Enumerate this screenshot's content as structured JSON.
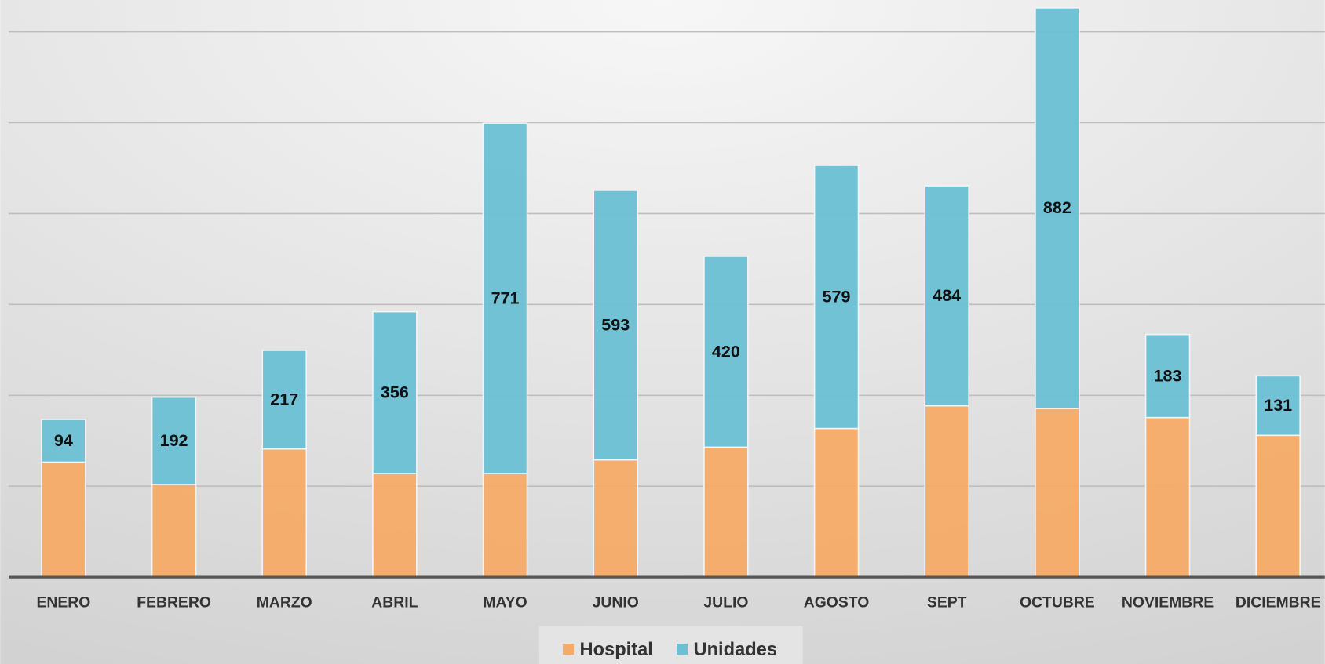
{
  "chart_data": {
    "type": "stacked_bar",
    "categories": [
      "ENERO",
      "FEBRERO",
      "MARZO",
      "ABRIL",
      "MAYO",
      "JUNIO",
      "JULIO",
      "AGOSTO",
      "SEPT",
      "OCTUBRE",
      "NOVIEMBRE",
      "DICIEMBRE"
    ],
    "series": [
      {
        "name": "Hospital",
        "color": "#f5ab67",
        "values": [
          253,
          204,
          282,
          228,
          228,
          258,
          286,
          327,
          377,
          371,
          351,
          312
        ]
      },
      {
        "name": "Unidades",
        "color": "#6cc0d5",
        "values": [
          94,
          192,
          217,
          356,
          771,
          593,
          420,
          579,
          484,
          882,
          183,
          131
        ],
        "show_labels": true
      }
    ],
    "ylim": [
      0,
      1270
    ],
    "yticks": [
      0,
      200,
      400,
      600,
      800,
      1000,
      1200
    ],
    "grid": true,
    "legend": "bottom"
  }
}
